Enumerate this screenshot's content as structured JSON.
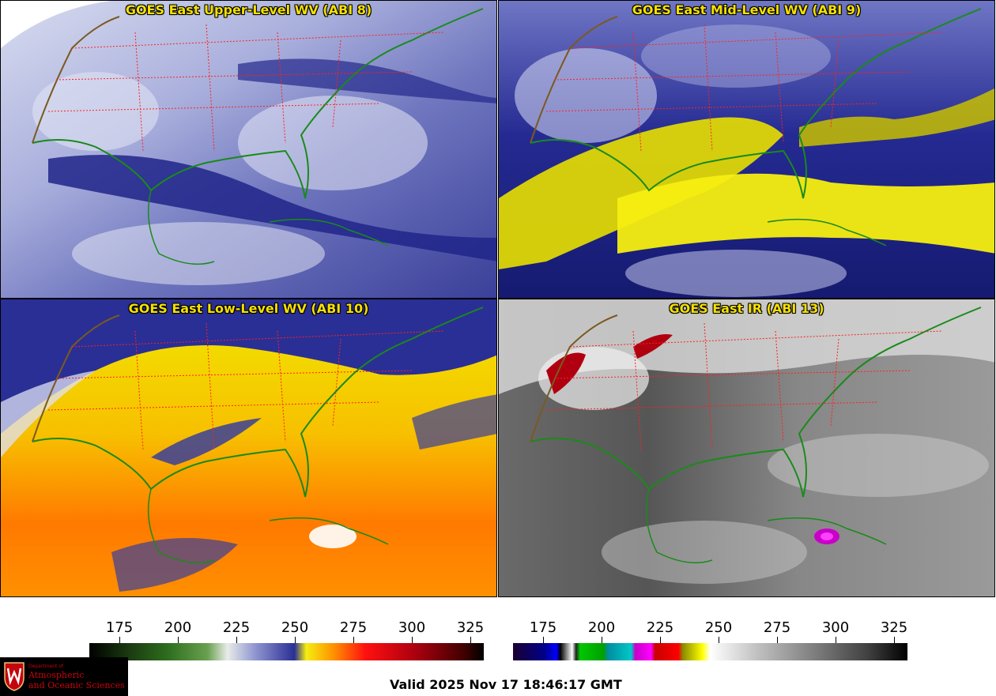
{
  "panels": {
    "upper_level": {
      "title": "GOES East Upper-Level WV (ABI 8)"
    },
    "mid_level": {
      "title": "GOES East Mid-Level WV (ABI 9)"
    },
    "low_level": {
      "title": "GOES East Low-Level WV (ABI 10)"
    },
    "ir": {
      "title": "GOES East IR (ABI 13)"
    }
  },
  "colorbars": {
    "wv": {
      "ticks": [
        "175",
        "200",
        "225",
        "250",
        "275",
        "300",
        "325"
      ]
    },
    "ir": {
      "ticks": [
        "175",
        "200",
        "225",
        "250",
        "275",
        "300",
        "325"
      ]
    }
  },
  "logo": {
    "department": "Department of",
    "line1": "Atmospheric",
    "line2": "and Oceanic Sciences"
  },
  "valid_time": "Valid 2025 Nov 17 18:46:17 GMT",
  "colors": {
    "title_text": "#f5e000",
    "state_borders": "#ff2020",
    "coastline": "#1a8a1a",
    "country_borders": "#7a5a20"
  }
}
